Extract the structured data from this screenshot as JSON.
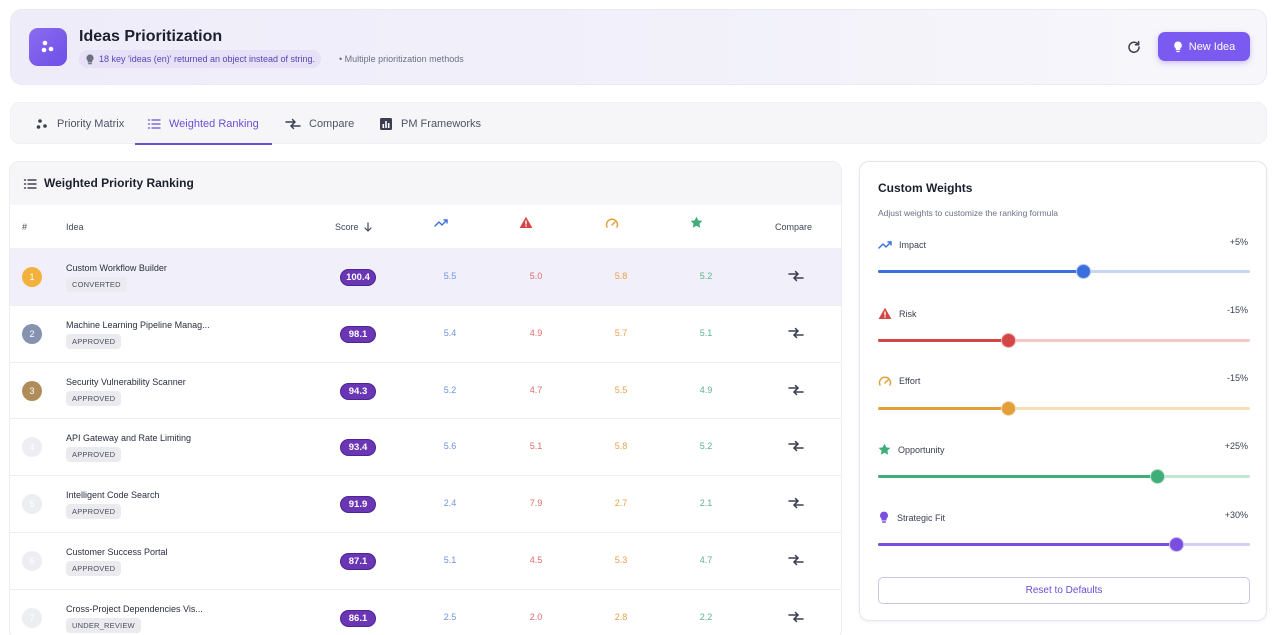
{
  "header": {
    "title": "Ideas Prioritization",
    "warning": "18 key 'ideas (en)' returned an object instead of string.",
    "subtitle": "• Multiple prioritization methods",
    "new_idea_label": "New Idea"
  },
  "tabs": [
    {
      "label": "Priority Matrix",
      "icon": "scatter-icon"
    },
    {
      "label": "Weighted Ranking",
      "icon": "list-icon",
      "active": true
    },
    {
      "label": "Compare",
      "icon": "compare-icon"
    },
    {
      "label": "PM Frameworks",
      "icon": "chart-icon"
    }
  ],
  "ranking": {
    "title": "Weighted Priority Ranking",
    "columns": {
      "rank": "#",
      "idea": "Idea",
      "score": "Score",
      "compare": "Compare"
    },
    "rows": [
      {
        "rank": "1",
        "name": "Custom Workflow Builder",
        "status": "CONVERTED",
        "score": "100.4",
        "impact": "5.5",
        "risk": "5.0",
        "effort": "5.8",
        "opportunity": "5.2",
        "rank_color": "#f2b13c"
      },
      {
        "rank": "2",
        "name": "Machine Learning Pipeline Manag...",
        "status": "APPROVED",
        "score": "98.1",
        "impact": "5.4",
        "risk": "4.9",
        "effort": "5.7",
        "opportunity": "5.1",
        "rank_color": "#8593b0"
      },
      {
        "rank": "3",
        "name": "Security Vulnerability Scanner",
        "status": "APPROVED",
        "score": "94.3",
        "impact": "5.2",
        "risk": "4.7",
        "effort": "5.5",
        "opportunity": "4.9",
        "rank_color": "#b08c5a"
      },
      {
        "rank": "4",
        "name": "API Gateway and Rate Limiting",
        "status": "APPROVED",
        "score": "93.4",
        "impact": "5.6",
        "risk": "5.1",
        "effort": "5.8",
        "opportunity": "5.2",
        "rank_color": "#eceef2"
      },
      {
        "rank": "5",
        "name": "Intelligent Code Search",
        "status": "APPROVED",
        "score": "91.9",
        "impact": "2.4",
        "risk": "7.9",
        "effort": "2.7",
        "opportunity": "2.1",
        "rank_color": "#eceef2"
      },
      {
        "rank": "6",
        "name": "Customer Success Portal",
        "status": "APPROVED",
        "score": "87.1",
        "impact": "5.1",
        "risk": "4.5",
        "effort": "5.3",
        "opportunity": "4.7",
        "rank_color": "#eceef2"
      },
      {
        "rank": "7",
        "name": "Cross-Project Dependencies Vis...",
        "status": "UNDER_REVIEW",
        "score": "86.1",
        "impact": "2.5",
        "risk": "2.0",
        "effort": "2.8",
        "opportunity": "2.2",
        "rank_color": "#eceef2"
      }
    ]
  },
  "weights": {
    "title": "Custom Weights",
    "subtitle": "Adjust weights to customize the ranking formula",
    "items": [
      {
        "label": "Impact",
        "value": "+5%",
        "position": 0.55,
        "color": "#3b6fe0",
        "track": "#c6d4f5"
      },
      {
        "label": "Risk",
        "value": "-15%",
        "position": 0.35,
        "color": "#d64545",
        "track": "#f5c7c7"
      },
      {
        "label": "Effort",
        "value": "-15%",
        "position": 0.35,
        "color": "#e3a03a",
        "track": "#f5dfb5"
      },
      {
        "label": "Opportunity",
        "value": "+25%",
        "position": 0.75,
        "color": "#3fae78",
        "track": "#c2e6d3"
      },
      {
        "label": "Strategic Fit",
        "value": "+30%",
        "position": 0.8,
        "color": "#7a4fe0",
        "track": "#d6cdf4"
      }
    ],
    "reset_label": "Reset to Defaults"
  }
}
